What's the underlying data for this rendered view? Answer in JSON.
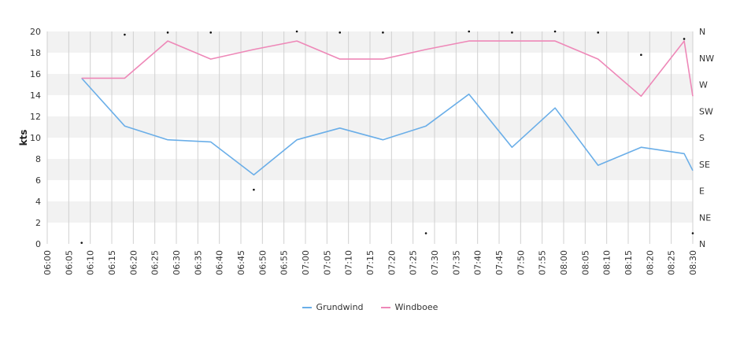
{
  "chart_data": {
    "type": "line",
    "ylabel": "kts",
    "ylim": [
      0,
      20
    ],
    "yticks": [
      "0",
      "2",
      "4",
      "6",
      "8",
      "10",
      "12",
      "14",
      "16",
      "18",
      "20"
    ],
    "direction_ticks": [
      "N",
      "NE",
      "E",
      "SE",
      "S",
      "SW",
      "W",
      "NW",
      "N"
    ],
    "x_ticks": [
      "06:00",
      "06:05",
      "06:10",
      "06:15",
      "06:20",
      "06:25",
      "06:30",
      "06:35",
      "06:40",
      "06:45",
      "06:50",
      "06:55",
      "07:00",
      "07:05",
      "07:10",
      "07:15",
      "07:20",
      "07:25",
      "07:30",
      "07:35",
      "07:40",
      "07:45",
      "07:50",
      "07:55",
      "08:00",
      "08:05",
      "08:10",
      "08:15",
      "08:20",
      "08:25",
      "08:30"
    ],
    "x_minutes_range": [
      0,
      150
    ],
    "grid": "horizontal bands and vertical lines",
    "legend_position": "bottom",
    "series": [
      {
        "name": "Grundwind",
        "color": "#6aaee8",
        "x": [
          "06:08",
          "06:18",
          "06:28",
          "06:38",
          "06:48",
          "06:58",
          "07:08",
          "07:18",
          "07:28",
          "07:38",
          "07:48",
          "07:58",
          "08:08",
          "08:18",
          "08:28",
          "08:30"
        ],
        "values": [
          15.6,
          11.1,
          9.8,
          9.6,
          6.5,
          9.8,
          10.9,
          9.8,
          11.1,
          14.1,
          9.1,
          12.8,
          7.4,
          9.1,
          8.5,
          6.9
        ]
      },
      {
        "name": "Windboee",
        "color": "#ee88b8",
        "x": [
          "06:08",
          "06:18",
          "06:28",
          "06:38",
          "06:48",
          "06:58",
          "07:08",
          "07:18",
          "07:28",
          "07:38",
          "07:48",
          "07:58",
          "08:08",
          "08:18",
          "08:28",
          "08:30"
        ],
        "values": [
          15.6,
          15.6,
          19.1,
          17.4,
          18.3,
          19.1,
          17.4,
          17.4,
          18.3,
          19.1,
          19.1,
          19.1,
          17.4,
          13.9,
          19.1,
          13.9
        ]
      }
    ],
    "direction_points": {
      "x": [
        "06:08",
        "06:18",
        "06:28",
        "06:38",
        "06:48",
        "06:58",
        "07:08",
        "07:18",
        "07:28",
        "07:38",
        "07:48",
        "07:58",
        "08:08",
        "08:18",
        "08:28",
        "08:30"
      ],
      "values": [
        0.1,
        19.7,
        19.9,
        19.9,
        5.1,
        20.0,
        19.9,
        19.9,
        1.0,
        20.0,
        19.9,
        20.0,
        19.9,
        17.8,
        19.3,
        1.0
      ]
    }
  }
}
